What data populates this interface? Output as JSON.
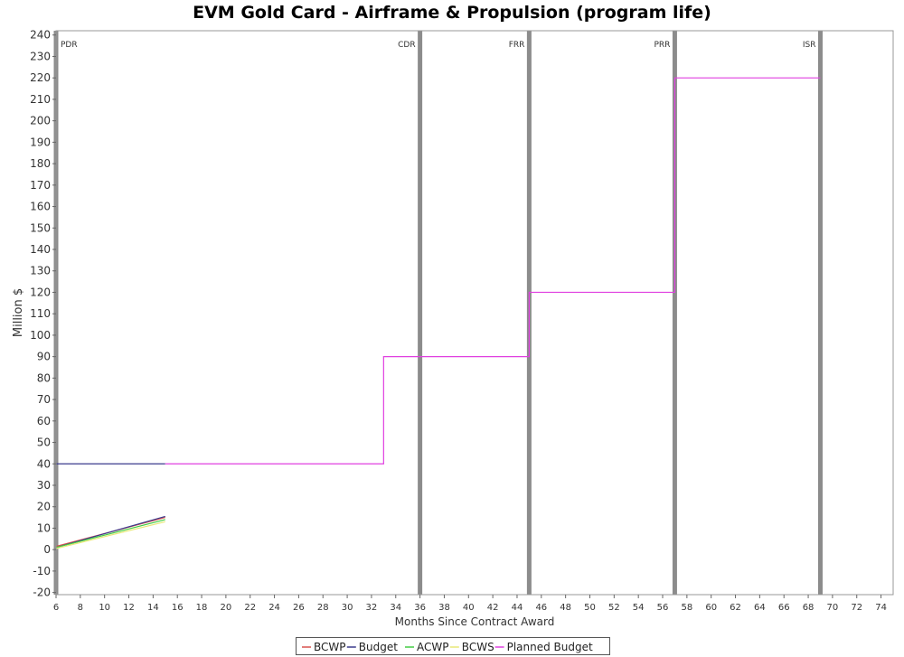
{
  "chart_data": {
    "type": "line",
    "title": "EVM Gold Card - Airframe & Propulsion (program life)",
    "xlabel": "Months Since Contract Award",
    "ylabel": "Million $",
    "xlim": [
      6,
      75
    ],
    "ylim": [
      -21,
      242
    ],
    "x_ticks": [
      6,
      8,
      10,
      12,
      14,
      16,
      18,
      20,
      22,
      24,
      26,
      28,
      30,
      32,
      34,
      36,
      38,
      40,
      42,
      44,
      46,
      48,
      50,
      52,
      54,
      56,
      58,
      60,
      62,
      64,
      66,
      68,
      70,
      72,
      74
    ],
    "y_ticks": [
      -20,
      -10,
      0,
      10,
      20,
      30,
      40,
      50,
      60,
      70,
      80,
      90,
      100,
      110,
      120,
      130,
      140,
      150,
      160,
      170,
      180,
      190,
      200,
      210,
      220,
      230,
      240
    ],
    "grid": false,
    "legend_position": "bottom-center",
    "milestones": [
      {
        "label": "PDR",
        "x": 6
      },
      {
        "label": "CDR",
        "x": 36
      },
      {
        "label": "FRR",
        "x": 45
      },
      {
        "label": "PRR",
        "x": 57
      },
      {
        "label": "ISR",
        "x": 69
      }
    ],
    "series": [
      {
        "name": "BCWP",
        "color": "#d9534f",
        "x": [
          6,
          15
        ],
        "values": [
          1.5,
          15
        ]
      },
      {
        "name": "Budget",
        "color": "#3a3a8c",
        "x": [
          6,
          15
        ],
        "values": [
          40,
          40
        ],
        "second_line": {
          "x": [
            6,
            15
          ],
          "values": [
            1,
            15.5
          ]
        }
      },
      {
        "name": "ACWP",
        "color": "#44cc44",
        "x": [
          6,
          15
        ],
        "values": [
          1,
          14
        ]
      },
      {
        "name": "BCWS",
        "color": "#e8e878",
        "x": [
          6,
          15
        ],
        "values": [
          0.5,
          13
        ]
      },
      {
        "name": "Planned Budget",
        "color": "#e040e0",
        "step": true,
        "x": [
          15,
          33,
          33,
          45,
          45,
          57,
          57,
          69
        ],
        "values": [
          40,
          40,
          90,
          90,
          120,
          120,
          220,
          220
        ]
      }
    ]
  }
}
